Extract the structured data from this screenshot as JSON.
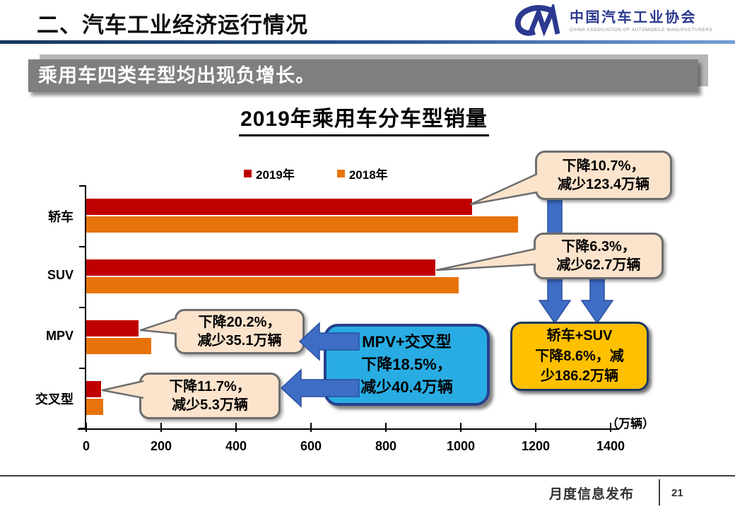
{
  "slide": {
    "header": {
      "title": "二、汽车工业经济运行情况",
      "logo": {
        "mark": "CM",
        "cn": "中国汽车工业协会",
        "en": "CHINA ASSOCIATION OF AUTOMOBILE MANUFACTURERS"
      }
    },
    "banner": "乘用车四类车型均出现负增长。",
    "unit_label": "（万辆）",
    "footer": {
      "label": "月度信息发布",
      "page": "21"
    }
  },
  "chart_data": {
    "type": "bar",
    "orientation": "horizontal",
    "title": "2019年乘用车分车型销量",
    "categories": [
      "轿车",
      "SUV",
      "MPV",
      "交叉型"
    ],
    "series": [
      {
        "name": "2019年",
        "color": "#c00000",
        "values": [
          1029.9,
          932.5,
          138.7,
          40.0
        ]
      },
      {
        "name": "2018年",
        "color": "#e8730a",
        "values": [
          1153.3,
          995.2,
          173.8,
          45.3
        ]
      }
    ],
    "x_ticks": [
      0,
      200,
      400,
      600,
      800,
      1000,
      1200,
      1400
    ],
    "xlim": [
      0,
      1400
    ],
    "unit": "万辆",
    "legend_position": "top",
    "grid": false
  },
  "annotations": {
    "callouts": [
      {
        "target": "轿车",
        "lines": [
          "下降10.7%，",
          "减少123.4万辆"
        ]
      },
      {
        "target": "SUV",
        "lines": [
          "下降6.3%，",
          "减少62.7万辆"
        ]
      },
      {
        "target": "MPV",
        "lines": [
          "下降20.2%，",
          "减少35.1万辆"
        ]
      },
      {
        "target": "交叉型",
        "lines": [
          "下降11.7%，",
          "减少5.3万辆"
        ]
      }
    ],
    "summary_boxes": [
      {
        "id": "sedan-suv",
        "fill": "#ffc000",
        "lines": [
          "轿车+SUV",
          "下降8.6%，减",
          "少186.2万辆"
        ]
      },
      {
        "id": "mpv-cross",
        "fill": "#29ace3",
        "lines": [
          "MPV+交叉型",
          "下降18.5%，",
          "减少40.4万辆"
        ]
      }
    ]
  }
}
